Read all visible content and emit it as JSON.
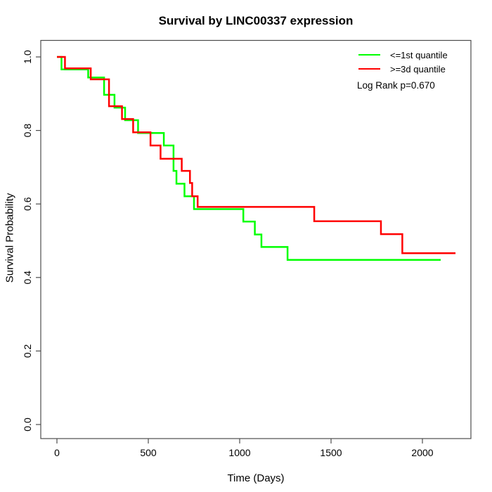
{
  "chart_data": {
    "type": "line",
    "subtype": "kaplan-meier-step",
    "title": "Survival by LINC00337 expression",
    "xlabel": "Time (Days)",
    "ylabel": "Survival Probability",
    "xlim": [
      0,
      2200
    ],
    "ylim": [
      0.0,
      1.0
    ],
    "xticks": [
      0,
      500,
      1000,
      1500,
      2000
    ],
    "yticks": [
      0.0,
      0.2,
      0.4,
      0.6,
      0.8,
      1.0
    ],
    "grid": false,
    "legend": {
      "position": "top-right",
      "entries": [
        {
          "label": "<=1st quantile",
          "color": "#00ff00"
        },
        {
          "label": ">=3d quantile",
          "color": "#ff0000"
        }
      ]
    },
    "annotation": "Log Rank p=0.670",
    "series": [
      {
        "name": "<=1st quantile",
        "color": "#00ff00",
        "end_day": 2100,
        "points": [
          [
            0,
            1.0
          ],
          [
            25,
            0.966
          ],
          [
            171,
            0.944
          ],
          [
            258,
            0.897
          ],
          [
            315,
            0.862
          ],
          [
            373,
            0.828
          ],
          [
            444,
            0.793
          ],
          [
            585,
            0.759
          ],
          [
            638,
            0.69
          ],
          [
            654,
            0.655
          ],
          [
            698,
            0.621
          ],
          [
            750,
            0.586
          ],
          [
            1020,
            0.552
          ],
          [
            1083,
            0.517
          ],
          [
            1119,
            0.483
          ],
          [
            1262,
            0.448
          ]
        ]
      },
      {
        "name": ">=3d quantile",
        "color": "#ff0000",
        "end_day": 2181,
        "points": [
          [
            0,
            1.0
          ],
          [
            44,
            0.969
          ],
          [
            185,
            0.939
          ],
          [
            285,
            0.866
          ],
          [
            356,
            0.831
          ],
          [
            417,
            0.795
          ],
          [
            512,
            0.759
          ],
          [
            567,
            0.723
          ],
          [
            683,
            0.69
          ],
          [
            728,
            0.657
          ],
          [
            740,
            0.621
          ],
          [
            770,
            0.592
          ],
          [
            1408,
            0.553
          ],
          [
            1773,
            0.518
          ],
          [
            1890,
            0.466
          ]
        ]
      }
    ]
  }
}
